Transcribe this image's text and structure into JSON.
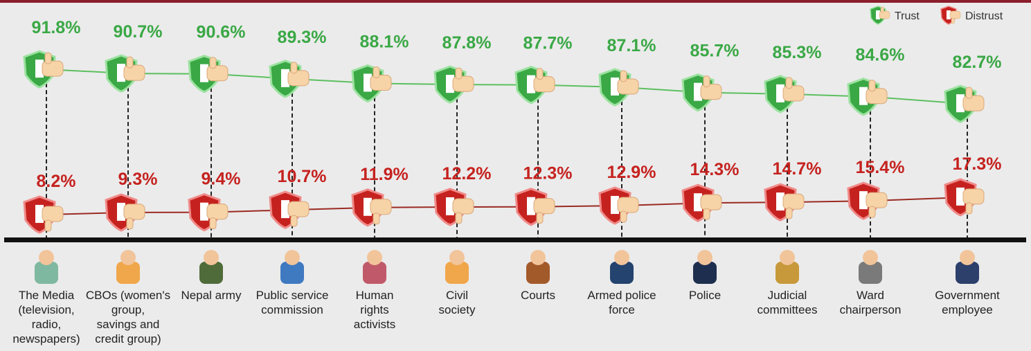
{
  "chart_data": {
    "type": "line",
    "categories": [
      "The Media\n(television,\nradio,\nnewspapers)",
      "CBOs (women's\ngroup,\nsavings and\ncredit group)",
      "Nepal army",
      "Public service\ncommission",
      "Human\nrights\nactivists",
      "Civil\nsociety",
      "Courts",
      "Armed police\nforce",
      "Police",
      "Judicial\ncommittees",
      "Ward\nchairperson",
      "Government\nemployee"
    ],
    "series": [
      {
        "name": "Trust",
        "color": "#3aa845",
        "values": [
          91.8,
          90.7,
          90.6,
          89.3,
          88.1,
          87.8,
          87.7,
          87.1,
          85.7,
          85.3,
          84.6,
          82.7
        ],
        "value_labels": [
          "91.8%",
          "90.7%",
          "90.6%",
          "89.3%",
          "88.1%",
          "87.8%",
          "87.7%",
          "87.1%",
          "85.7%",
          "85.3%",
          "84.6%",
          "82.7%"
        ]
      },
      {
        "name": "Distrust",
        "color": "#c5221f",
        "values": [
          8.2,
          9.3,
          9.4,
          10.7,
          11.9,
          12.2,
          12.3,
          12.9,
          14.3,
          14.7,
          15.4,
          17.3
        ],
        "value_labels": [
          "8.2%",
          "9.3%",
          "9.4%",
          "10.7%",
          "11.9%",
          "12.2%",
          "12.3%",
          "12.9%",
          "14.3%",
          "14.7%",
          "15.4%",
          "17.3%"
        ]
      }
    ],
    "legend": "top-right"
  }
}
